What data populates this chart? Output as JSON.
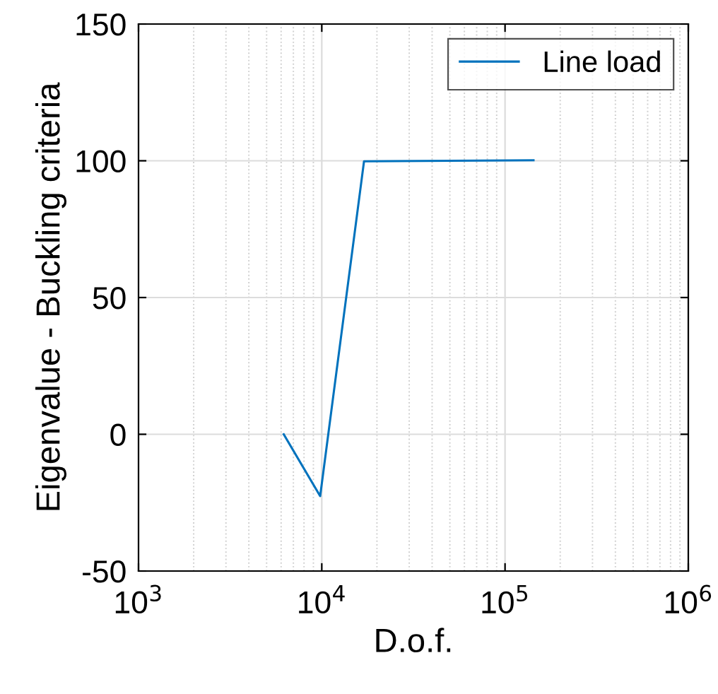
{
  "chart_data": {
    "type": "line",
    "xlabel": "D.o.f.",
    "ylabel": "Eigenvalue - Buckling criteria",
    "x": [
      6200,
      9800,
      17000,
      143000
    ],
    "series": [
      {
        "name": "Line load",
        "color": "#0072bd",
        "values": [
          0,
          -22.6,
          99.8,
          100.2
        ]
      }
    ],
    "log": "x",
    "xlim": [
      1000,
      1000000
    ],
    "xticks": [
      {
        "value": 1000,
        "label": "10$^{3}$"
      },
      {
        "value": 10000,
        "label": "10$^{4}$"
      },
      {
        "value": 100000,
        "label": "10$^{5}$"
      },
      {
        "value": 1000000,
        "label": "10$^{6}$"
      }
    ],
    "ylim": [
      -50,
      150
    ],
    "yticks": [
      -50,
      0,
      50,
      100,
      150
    ],
    "grid": true,
    "legend": "top right",
    "marker": "none",
    "line_style": "solid"
  }
}
